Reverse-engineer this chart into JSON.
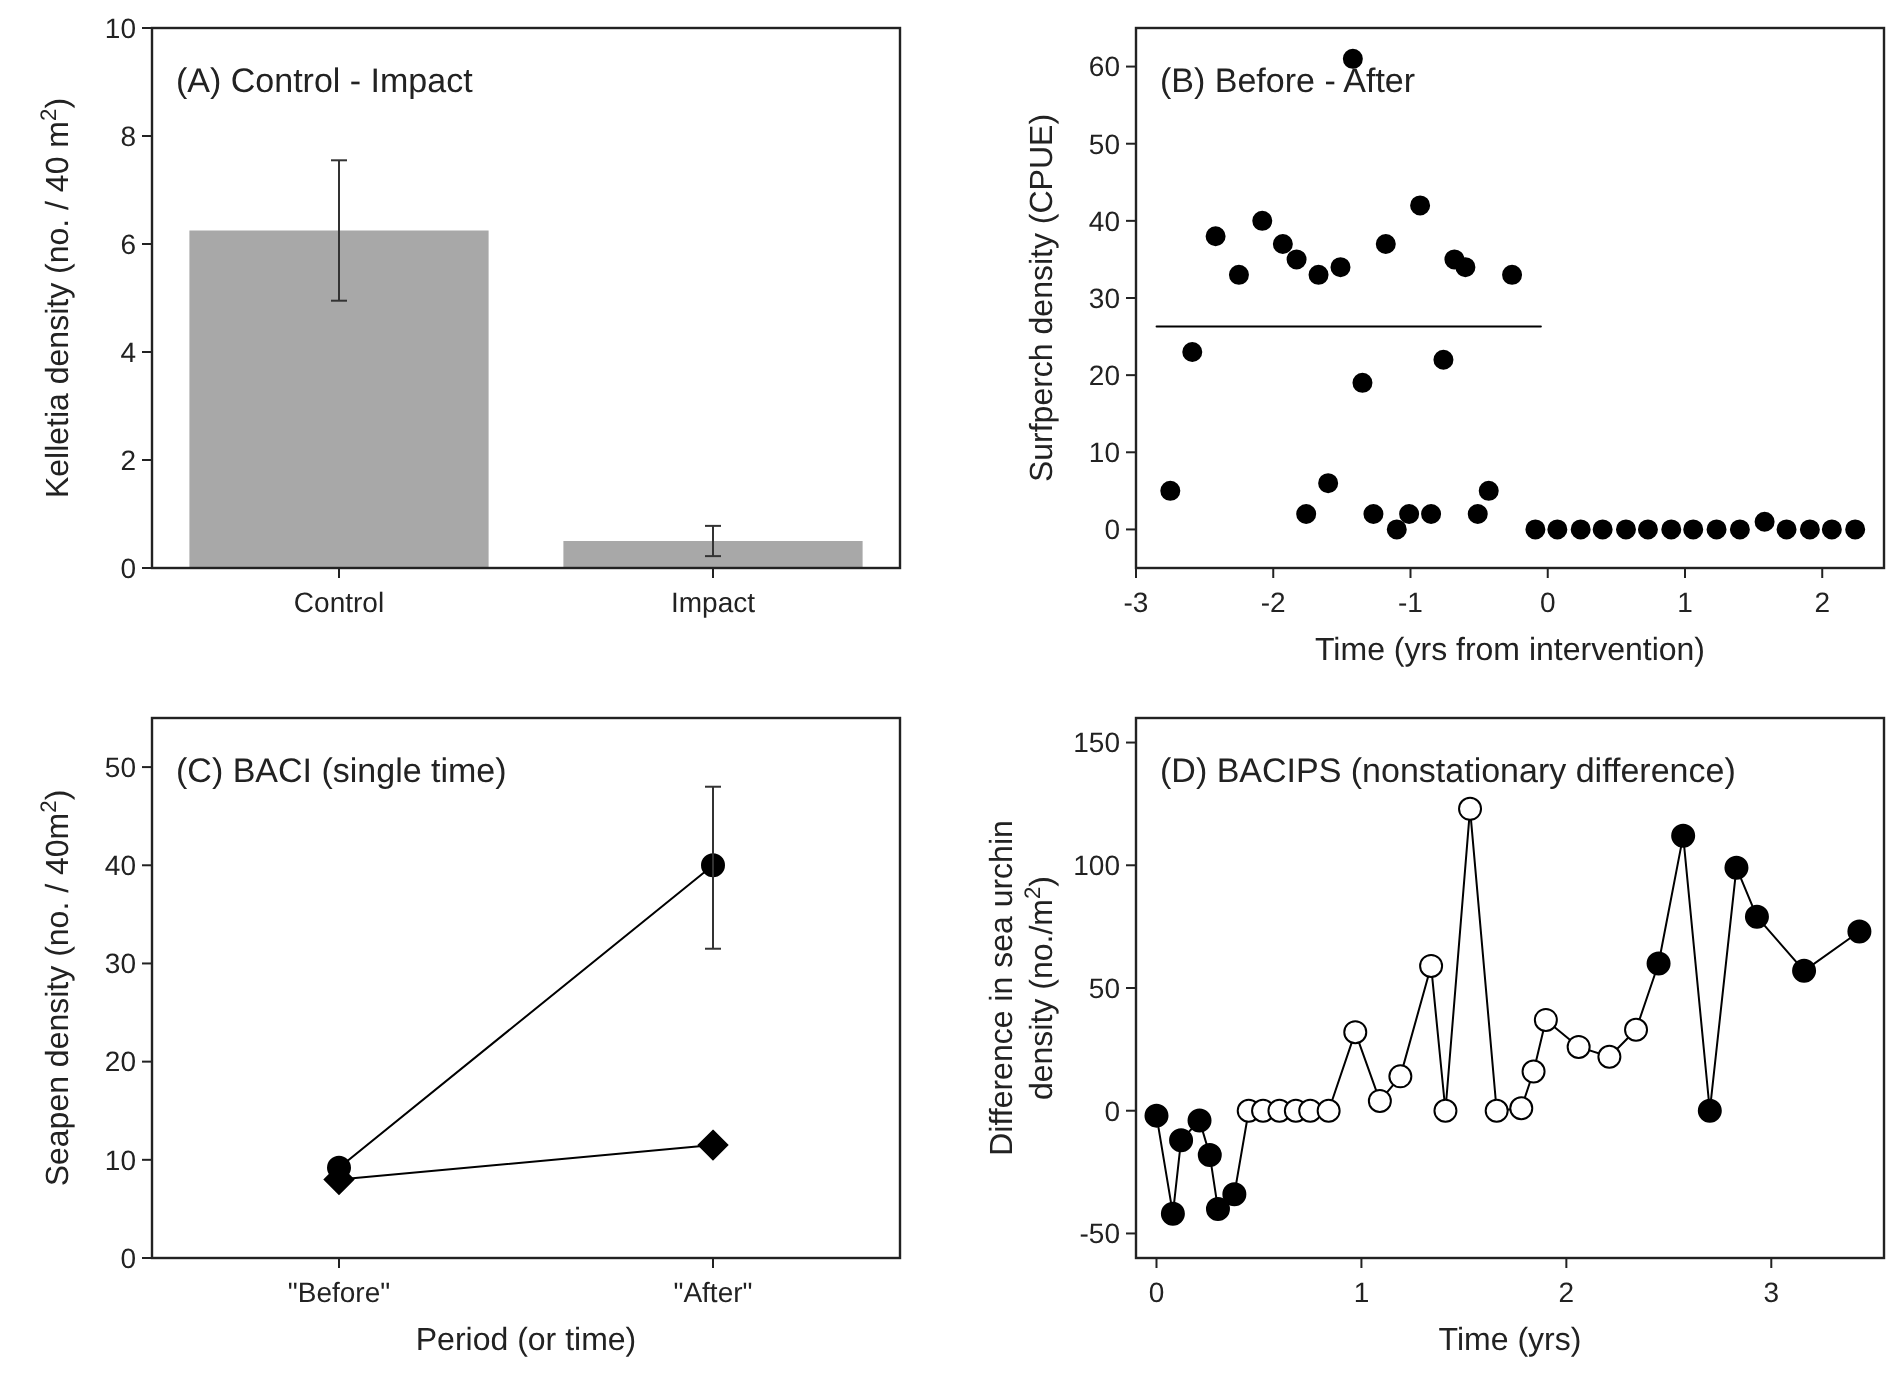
{
  "chart_data": [
    {
      "type": "bar",
      "title": "(A) Control - Impact",
      "ylabel": "Kelletia density (no. / 40 m$^{2}$)",
      "categories": [
        "Control",
        "Impact"
      ],
      "ylim": [
        0,
        10
      ],
      "yticks": [
        0,
        2,
        4,
        6,
        8,
        10
      ],
      "series": [
        {
          "color": "#a8a8a8",
          "values": [
            6.25,
            0.5
          ],
          "errors": [
            1.3,
            0.28
          ]
        }
      ]
    },
    {
      "type": "scatter",
      "title": "(B) Before - After",
      "xlabel": "Time (yrs from intervention)",
      "ylabel": "Surfperch density (CPUE)",
      "xlim": [
        -3,
        2.45
      ],
      "xticks": [
        -3,
        -2,
        -1,
        0,
        1,
        2
      ],
      "ylim": [
        -5,
        65
      ],
      "yticks": [
        0,
        10,
        20,
        30,
        40,
        50,
        60
      ],
      "marker": "circle",
      "series": [
        {
          "color": "#000000",
          "x": [
            -2.75,
            -2.59,
            -2.42,
            -2.25,
            -2.08,
            -1.93,
            -1.83,
            -1.76,
            -1.67,
            -1.6,
            -1.51,
            -1.42,
            -1.35,
            -1.27,
            -1.18,
            -1.1,
            -1.01,
            -0.93,
            -0.85,
            -0.76,
            -0.68,
            -0.6,
            -0.51,
            -0.43,
            -0.26,
            -0.09,
            0.07,
            0.24,
            0.4,
            0.57,
            0.73,
            0.9,
            1.06,
            1.23,
            1.4,
            1.58,
            1.74,
            1.91,
            2.07,
            2.24
          ],
          "values": [
            5,
            23,
            38,
            33,
            40,
            37,
            35,
            2,
            33,
            6,
            34,
            61,
            19,
            2,
            37,
            0,
            2,
            42,
            2,
            22,
            35,
            34,
            2,
            5,
            33,
            0,
            0,
            0,
            0,
            0,
            0,
            0,
            0,
            0,
            0,
            1,
            0,
            0,
            0,
            0
          ]
        },
        {
          "type": "line",
          "marker": "none",
          "color": "#000000",
          "x": [
            -2.85,
            -0.05
          ],
          "values": [
            26.3,
            26.3
          ]
        }
      ]
    },
    {
      "type": "line",
      "title": "(C) BACI (single time)",
      "xlabel": "Period (or time)",
      "ylabel": "Seapen density (no. / 40m$^{2}$)",
      "categories": [
        "\"Before\"",
        "\"After\""
      ],
      "ylim": [
        0,
        55
      ],
      "yticks": [
        0,
        10,
        20,
        30,
        40,
        50
      ],
      "series": [
        {
          "color": "#000000",
          "marker": "circle",
          "values": [
            9.2,
            40
          ],
          "errors": [
            null,
            [
              31.5,
              48
            ]
          ]
        },
        {
          "color": "#000000",
          "marker": "diamond",
          "values": [
            8,
            11.5
          ]
        }
      ]
    },
    {
      "type": "line",
      "title": "(D) BACIPS (nonstationary difference)",
      "xlabel": "Time (yrs)",
      "ylabel": "Difference in sea urchin\ndensity (no./m$^{2}$)",
      "xlim": [
        -0.1,
        3.55
      ],
      "xticks": [
        0,
        1,
        2,
        3
      ],
      "ylim": [
        -60,
        160
      ],
      "yticks": [
        -50,
        0,
        50,
        100,
        150
      ],
      "series": [
        {
          "color": "#000000",
          "marker": "circle",
          "x": [
            0,
            0.08,
            0.12,
            0.21,
            0.26,
            0.3,
            0.38,
            0.45,
            0.52,
            0.6,
            0.68,
            0.75,
            0.84,
            0.97,
            1.09,
            1.19,
            1.34,
            1.41,
            1.53,
            1.66,
            1.78,
            1.84,
            1.9,
            2.06,
            2.21,
            2.34,
            2.45,
            2.57,
            2.7,
            2.83,
            2.93,
            3.16,
            3.43
          ],
          "values": [
            -2,
            -42,
            -12,
            -4,
            -18,
            -40,
            -34,
            0,
            0,
            0,
            0,
            0,
            0,
            32,
            4,
            14,
            59,
            0,
            123,
            0,
            1,
            16,
            37,
            26,
            22,
            33,
            60,
            112,
            0,
            99,
            79,
            57,
            73
          ],
          "colors": [
            "#000000",
            "#000000",
            "#000000",
            "#000000",
            "#000000",
            "#000000",
            "#000000",
            "#ffffff",
            "#ffffff",
            "#ffffff",
            "#ffffff",
            "#ffffff",
            "#ffffff",
            "#ffffff",
            "#ffffff",
            "#ffffff",
            "#ffffff",
            "#ffffff",
            "#ffffff",
            "#ffffff",
            "#ffffff",
            "#ffffff",
            "#ffffff",
            "#ffffff",
            "#ffffff",
            "#ffffff",
            "#000000",
            "#000000",
            "#000000",
            "#000000",
            "#000000",
            "#000000",
            "#000000"
          ]
        }
      ]
    }
  ]
}
